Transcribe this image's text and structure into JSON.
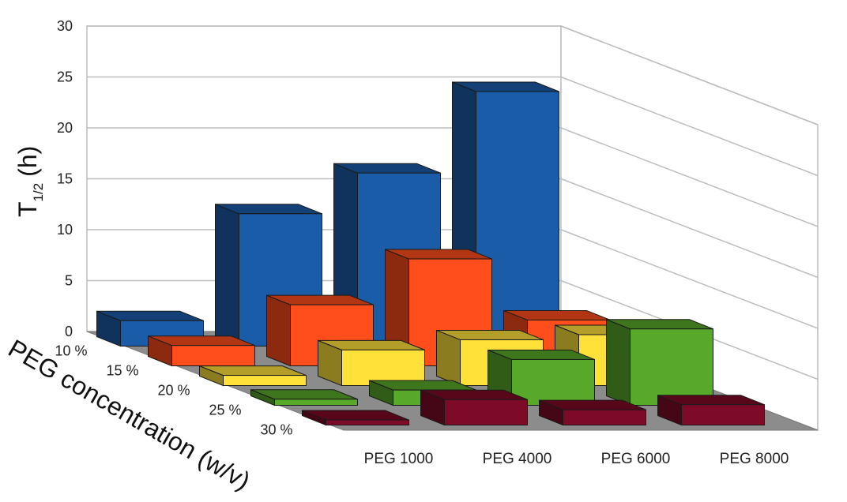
{
  "chart_data": {
    "type": "bar",
    "subtype": "3d-bar",
    "title": "",
    "ylabel_main": "T",
    "ylabel_sub": "1/2",
    "ylabel_unit": "(h)",
    "depth_label": "PEG concentration (w/v)",
    "ylim": [
      0,
      30
    ],
    "yticks": [
      "0",
      "5",
      "10",
      "15",
      "20",
      "25",
      "30"
    ],
    "grid": true,
    "categories": [
      "PEG 1000",
      "PEG 4000",
      "PEG 6000",
      "PEG 8000"
    ],
    "series": [
      {
        "name": "10 %",
        "color": "#1b5ca8",
        "values": [
          2.5,
          13,
          17,
          25
        ]
      },
      {
        "name": "15 %",
        "color": "#ff4d1c",
        "values": [
          2,
          6,
          10.5,
          4.5
        ]
      },
      {
        "name": "20 %",
        "color": "#ffe13a",
        "values": [
          1,
          3.5,
          4.5,
          5
        ]
      },
      {
        "name": "25 %",
        "color": "#58a82a",
        "values": [
          0.6,
          1.5,
          4.5,
          7.5
        ]
      },
      {
        "name": "30 %",
        "color": "#7d0a26",
        "values": [
          0.5,
          2.5,
          1.5,
          2
        ]
      }
    ]
  }
}
